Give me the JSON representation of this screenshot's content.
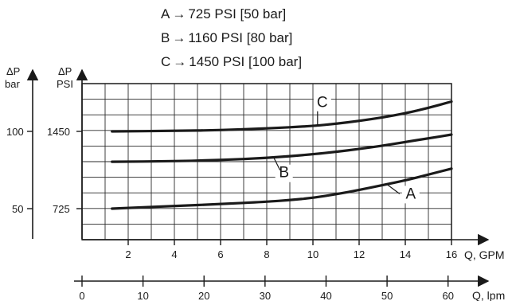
{
  "legend": [
    {
      "key": "A",
      "arrow": "→",
      "value": "725 PSI [50 bar]"
    },
    {
      "key": "B",
      "arrow": "→",
      "value": "1160 PSI [80 bar]"
    },
    {
      "key": "C",
      "arrow": "→",
      "value": "1450 PSI [100 bar]"
    }
  ],
  "chart_data": {
    "type": "line",
    "x_top": {
      "label": "Q, GPM",
      "range": [
        0,
        16
      ],
      "ticks": [
        "2",
        "4",
        "6",
        "8",
        "10",
        "12",
        "14",
        "16"
      ]
    },
    "x_bottom": {
      "label": "Q, lpm",
      "ticks": [
        "0",
        "10",
        "20",
        "30",
        "40",
        "50",
        "60"
      ]
    },
    "y_psi": {
      "label": [
        "ΔP",
        "PSI"
      ],
      "ticks": [
        "725",
        "1450"
      ]
    },
    "y_bar": {
      "label": [
        "ΔP",
        "bar"
      ],
      "ticks": [
        "50",
        "100"
      ]
    },
    "grid": true,
    "series": [
      {
        "name": "A",
        "x": [
          1.3,
          4,
          6,
          8,
          9,
          10,
          11,
          12,
          13,
          14,
          15,
          16
        ],
        "y": [
          725,
          750,
          768,
          790,
          805,
          826,
          860,
          900,
          945,
          990,
          1045,
          1100
        ]
      },
      {
        "name": "B",
        "x": [
          1.3,
          4,
          6,
          8,
          10,
          11,
          12,
          13,
          14,
          15,
          16
        ],
        "y": [
          1165,
          1170,
          1182,
          1200,
          1235,
          1258,
          1285,
          1315,
          1350,
          1385,
          1420
        ]
      },
      {
        "name": "C",
        "x": [
          1.3,
          4,
          6,
          8,
          10,
          11,
          12,
          13,
          14,
          15,
          16
        ],
        "y": [
          1450,
          1455,
          1462,
          1478,
          1500,
          1522,
          1548,
          1580,
          1620,
          1670,
          1730
        ]
      }
    ]
  }
}
